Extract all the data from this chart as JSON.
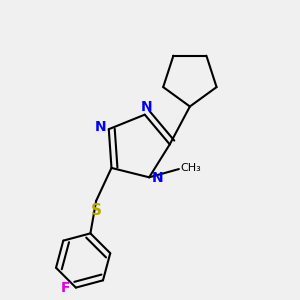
{
  "bg_color": "#f0f0f0",
  "bond_color": "#000000",
  "N_color": "#0000ff",
  "S_color": "#b8a800",
  "F_color": "#e000e0",
  "line_width": 1.5,
  "dbo": 0.018,
  "font_size": 10,
  "figsize": [
    3.0,
    3.0
  ],
  "dpi": 100,
  "xlim": [
    0.15,
    0.85
  ],
  "ylim": [
    0.05,
    0.95
  ]
}
